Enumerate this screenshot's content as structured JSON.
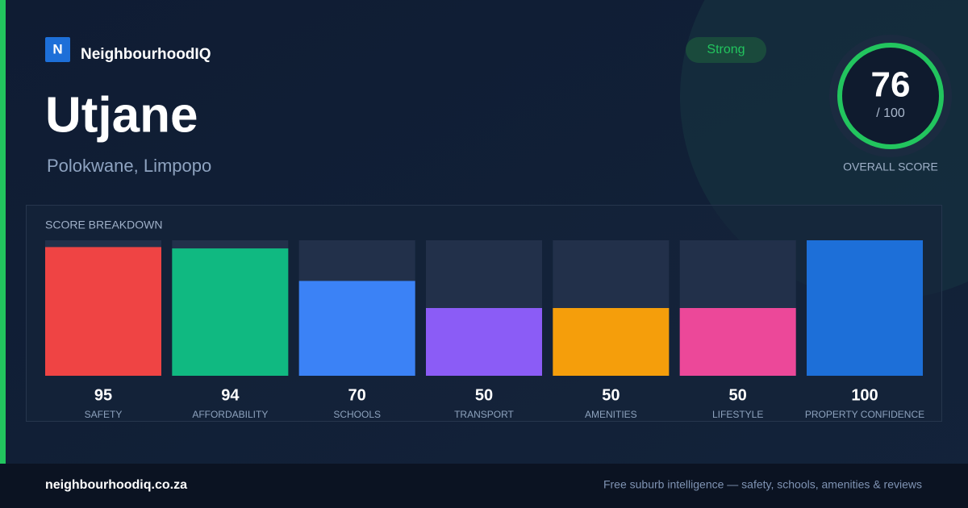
{
  "brand": {
    "logo": "N",
    "name": "NeighbourhoodIQ"
  },
  "place": {
    "name": "Utjane",
    "region": "Polokwane, Limpopo"
  },
  "badge": "Strong",
  "score": {
    "value": 76,
    "max_label": "/ 100",
    "label": "OVERALL SCORE"
  },
  "chart_data": {
    "type": "bar",
    "title": "SCORE BREAKDOWN",
    "categories": [
      "SAFETY",
      "AFFORDABILITY",
      "SCHOOLS",
      "TRANSPORT",
      "AMENITIES",
      "LIFESTYLE",
      "PROPERTY CONFIDENCE"
    ],
    "values": [
      95,
      94,
      70,
      50,
      50,
      50,
      100
    ],
    "colors": [
      "#ef4444",
      "#10b981",
      "#3b82f6",
      "#8b5cf6",
      "#f59e0b",
      "#ec4899",
      "#1d6fd8"
    ],
    "ylim": [
      0,
      100
    ]
  },
  "footer": {
    "site": "neighbourhoodiq.co.za",
    "tagline": "Free suburb intelligence — safety, schools, amenities & reviews"
  }
}
